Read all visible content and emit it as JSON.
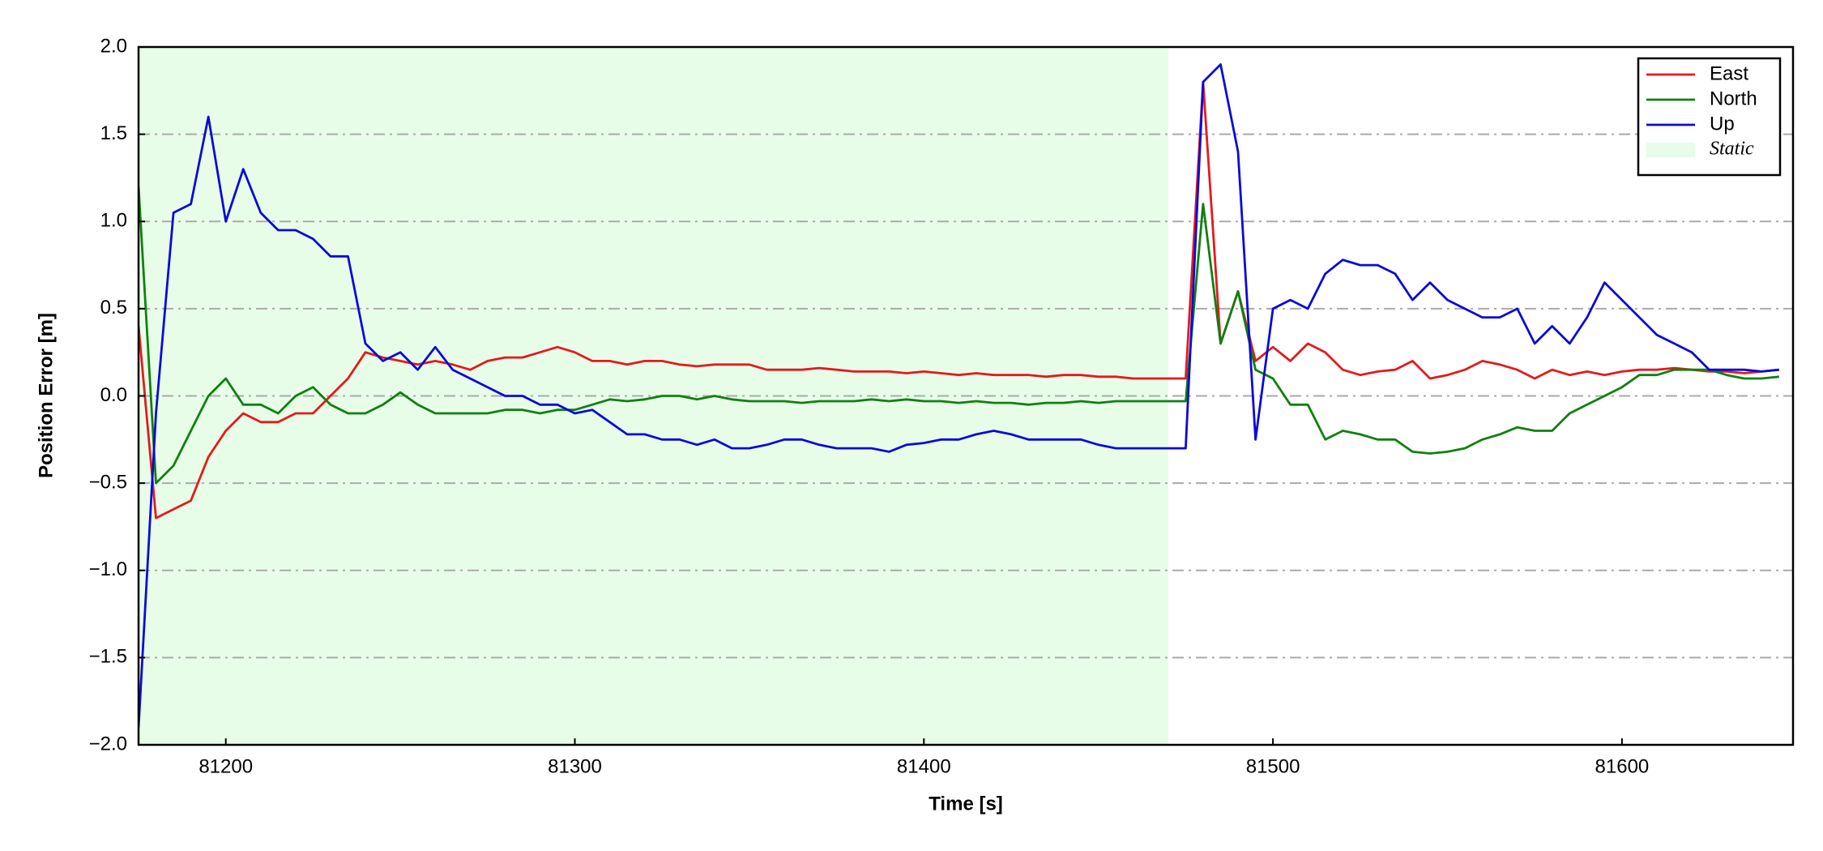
{
  "chart_data": {
    "type": "line",
    "xlabel": "Time [s]",
    "ylabel": "Position Error [m]",
    "xlim": [
      81175,
      81649
    ],
    "ylim": [
      -2,
      2
    ],
    "xticks": [
      81200,
      81300,
      81400,
      81500,
      81600
    ],
    "yticks": [
      {
        "value": -2,
        "label": "−2.0"
      },
      {
        "value": -1.5,
        "label": "−1.5"
      },
      {
        "value": -1,
        "label": "−1.0"
      },
      {
        "value": -0.5,
        "label": "−0.5"
      },
      {
        "value": 0,
        "label": "0.0"
      },
      {
        "value": 0.5,
        "label": "0.5"
      },
      {
        "value": 1,
        "label": "1.0"
      },
      {
        "value": 1.5,
        "label": "1.5"
      },
      {
        "value": 2,
        "label": "2.0"
      }
    ],
    "grid": "y",
    "legend": "upper right",
    "spans": [
      {
        "name": "Static",
        "xmin": 81175,
        "xmax": 81470,
        "color": "#e8fde8"
      }
    ],
    "x": [
      81175,
      81180,
      81185,
      81190,
      81195,
      81200,
      81205,
      81210,
      81215,
      81220,
      81225,
      81230,
      81235,
      81240,
      81245,
      81250,
      81255,
      81260,
      81265,
      81270,
      81275,
      81280,
      81285,
      81290,
      81295,
      81300,
      81305,
      81310,
      81315,
      81320,
      81325,
      81330,
      81335,
      81340,
      81345,
      81350,
      81355,
      81360,
      81365,
      81370,
      81375,
      81380,
      81385,
      81390,
      81395,
      81400,
      81405,
      81410,
      81415,
      81420,
      81425,
      81430,
      81435,
      81440,
      81445,
      81450,
      81455,
      81460,
      81465,
      81470,
      81475,
      81480,
      81485,
      81490,
      81495,
      81500,
      81505,
      81510,
      81515,
      81520,
      81525,
      81530,
      81535,
      81540,
      81545,
      81550,
      81555,
      81560,
      81565,
      81570,
      81575,
      81580,
      81585,
      81590,
      81595,
      81600,
      81605,
      81610,
      81615,
      81620,
      81625,
      81630,
      81635,
      81640,
      81645
    ],
    "series": [
      {
        "name": "East",
        "color": "#e41a1c",
        "values": [
          0.4,
          -0.7,
          -0.65,
          -0.6,
          -0.35,
          -0.2,
          -0.1,
          -0.15,
          -0.15,
          -0.1,
          -0.1,
          0.0,
          0.1,
          0.25,
          0.22,
          0.2,
          0.18,
          0.2,
          0.18,
          0.15,
          0.2,
          0.22,
          0.22,
          0.25,
          0.28,
          0.25,
          0.2,
          0.2,
          0.18,
          0.2,
          0.2,
          0.18,
          0.17,
          0.18,
          0.18,
          0.18,
          0.15,
          0.15,
          0.15,
          0.16,
          0.15,
          0.14,
          0.14,
          0.14,
          0.13,
          0.14,
          0.13,
          0.12,
          0.13,
          0.12,
          0.12,
          0.12,
          0.11,
          0.12,
          0.12,
          0.11,
          0.11,
          0.1,
          0.1,
          0.1,
          0.1,
          1.8,
          0.3,
          0.6,
          0.2,
          0.28,
          0.2,
          0.3,
          0.25,
          0.15,
          0.12,
          0.14,
          0.15,
          0.2,
          0.1,
          0.12,
          0.15,
          0.2,
          0.18,
          0.15,
          0.1,
          0.15,
          0.12,
          0.14,
          0.12,
          0.14,
          0.15,
          0.15,
          0.16,
          0.15,
          0.14,
          0.14,
          0.13,
          0.14,
          0.15
        ]
      },
      {
        "name": "North",
        "color": "#108010",
        "values": [
          1.2,
          -0.5,
          -0.4,
          -0.2,
          0.0,
          0.1,
          -0.05,
          -0.05,
          -0.1,
          0.0,
          0.05,
          -0.05,
          -0.1,
          -0.1,
          -0.05,
          0.02,
          -0.05,
          -0.1,
          -0.1,
          -0.1,
          -0.1,
          -0.08,
          -0.08,
          -0.1,
          -0.08,
          -0.08,
          -0.05,
          -0.02,
          -0.03,
          -0.02,
          0.0,
          0.0,
          -0.02,
          0.0,
          -0.02,
          -0.03,
          -0.03,
          -0.03,
          -0.04,
          -0.03,
          -0.03,
          -0.03,
          -0.02,
          -0.03,
          -0.02,
          -0.03,
          -0.03,
          -0.04,
          -0.03,
          -0.04,
          -0.04,
          -0.05,
          -0.04,
          -0.04,
          -0.03,
          -0.04,
          -0.03,
          -0.03,
          -0.03,
          -0.03,
          -0.03,
          1.1,
          0.3,
          0.6,
          0.15,
          0.1,
          -0.05,
          -0.05,
          -0.25,
          -0.2,
          -0.22,
          -0.25,
          -0.25,
          -0.32,
          -0.33,
          -0.32,
          -0.3,
          -0.25,
          -0.22,
          -0.18,
          -0.2,
          -0.2,
          -0.1,
          -0.05,
          0.0,
          0.05,
          0.12,
          0.12,
          0.15,
          0.15,
          0.15,
          0.12,
          0.1,
          0.1,
          0.11
        ]
      },
      {
        "name": "Up",
        "color": "#0a0ad8",
        "values": [
          -1.9,
          -0.1,
          1.05,
          1.1,
          1.6,
          1.0,
          1.3,
          1.05,
          0.95,
          0.95,
          0.9,
          0.8,
          0.8,
          0.3,
          0.2,
          0.25,
          0.15,
          0.28,
          0.15,
          0.1,
          0.05,
          0.0,
          0.0,
          -0.05,
          -0.05,
          -0.1,
          -0.08,
          -0.15,
          -0.22,
          -0.22,
          -0.25,
          -0.25,
          -0.28,
          -0.25,
          -0.3,
          -0.3,
          -0.28,
          -0.25,
          -0.25,
          -0.28,
          -0.3,
          -0.3,
          -0.3,
          -0.32,
          -0.28,
          -0.27,
          -0.25,
          -0.25,
          -0.22,
          -0.2,
          -0.22,
          -0.25,
          -0.25,
          -0.25,
          -0.25,
          -0.28,
          -0.3,
          -0.3,
          -0.3,
          -0.3,
          -0.3,
          1.8,
          1.9,
          1.4,
          -0.25,
          0.5,
          0.55,
          0.5,
          0.7,
          0.78,
          0.75,
          0.75,
          0.7,
          0.55,
          0.65,
          0.55,
          0.5,
          0.45,
          0.45,
          0.5,
          0.3,
          0.4,
          0.3,
          0.45,
          0.65,
          0.55,
          0.45,
          0.35,
          0.3,
          0.25,
          0.15,
          0.15,
          0.15,
          0.14,
          0.15
        ]
      }
    ]
  }
}
